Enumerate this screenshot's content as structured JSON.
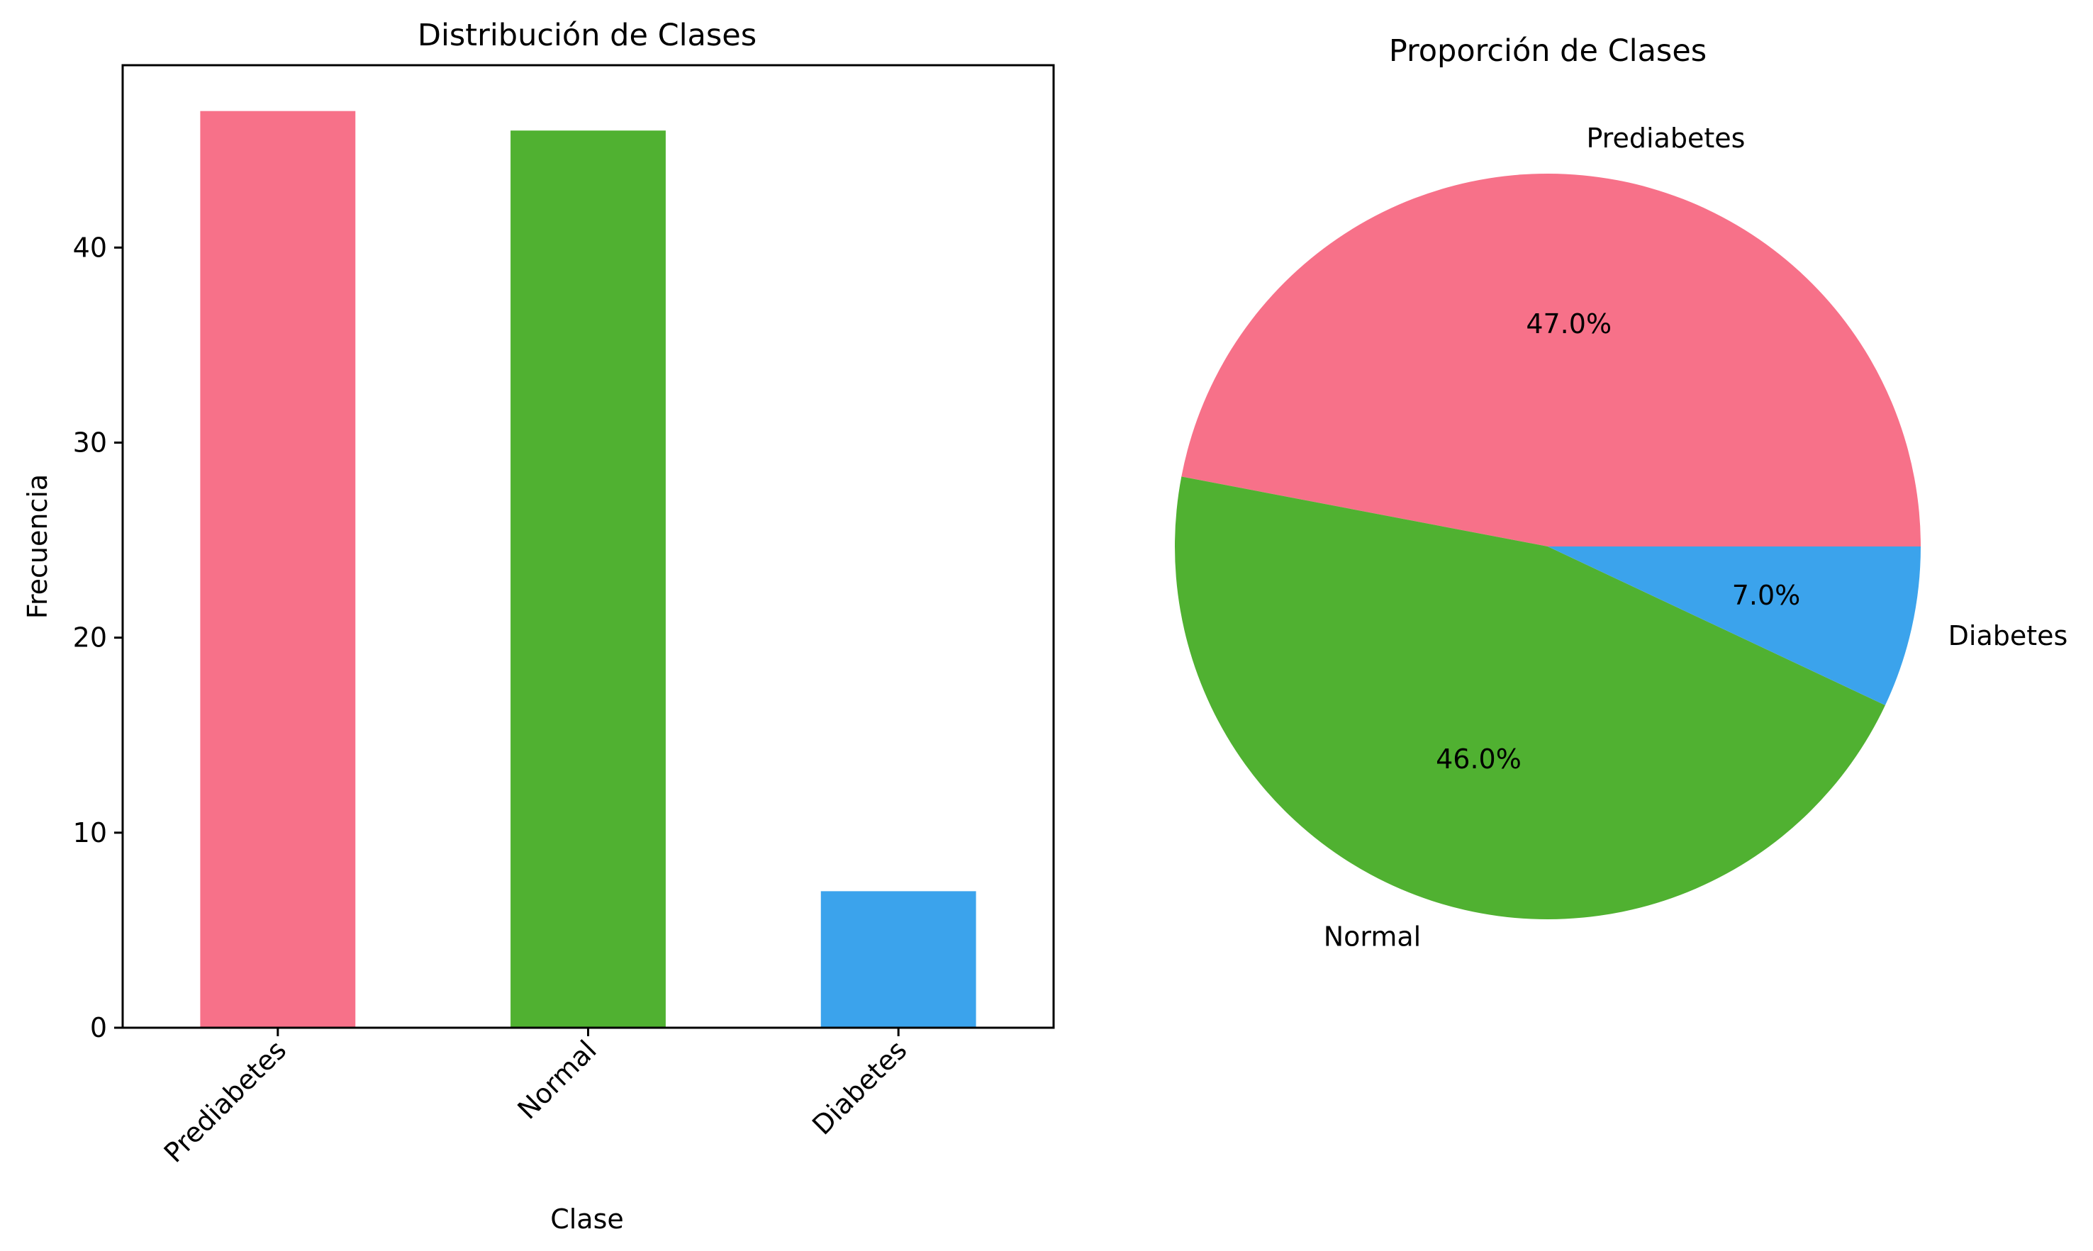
{
  "chart_data": [
    {
      "type": "bar",
      "title": "Distribución de Clases",
      "xlabel": "Clase",
      "ylabel": "Frecuencia",
      "categories": [
        "Prediabetes",
        "Normal",
        "Diabetes"
      ],
      "values": [
        47,
        46,
        7
      ],
      "colors": [
        "#f77189",
        "#50b131",
        "#3ba3ec"
      ],
      "ylim": [
        0,
        49.35
      ],
      "yticks": [
        0,
        10,
        20,
        30,
        40
      ],
      "xtick_rotation": 45,
      "grid": false,
      "legend": "none"
    },
    {
      "type": "pie",
      "title": "Proporción de Clases",
      "categories": [
        "Prediabetes",
        "Normal",
        "Diabetes"
      ],
      "values": [
        47.0,
        46.0,
        7.0
      ],
      "percent_labels": [
        "47.0%",
        "46.0%",
        "7.0%"
      ],
      "colors": [
        "#f77189",
        "#50b131",
        "#3ba3ec"
      ],
      "start_angle": 0,
      "direction": "counterclockwise",
      "legend": "none"
    }
  ]
}
